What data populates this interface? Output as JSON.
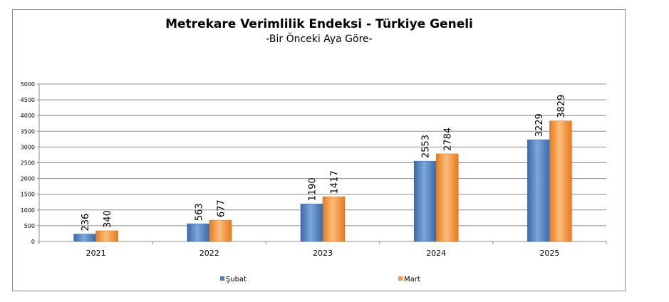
{
  "chart_data": {
    "type": "bar",
    "title": "Metrekare Verimlilik Endeksi - Türkiye Geneli",
    "subtitle": "-Bir Önceki Aya Göre-",
    "categories": [
      "2021",
      "2022",
      "2023",
      "2024",
      "2025"
    ],
    "series": [
      {
        "name": "Şubat",
        "values": [
          236,
          563,
          1190,
          2553,
          3229
        ],
        "color": "#4f81bd"
      },
      {
        "name": "Mart",
        "values": [
          340,
          677,
          1417,
          2784,
          3829
        ],
        "color": "#f79646"
      }
    ],
    "ylim": [
      0,
      5000
    ],
    "yticks": [
      0,
      500,
      1000,
      1500,
      2000,
      2500,
      3000,
      3500,
      4000,
      4500,
      5000
    ],
    "xlabel": "",
    "ylabel": "",
    "grid": true,
    "legend": "bottom"
  }
}
